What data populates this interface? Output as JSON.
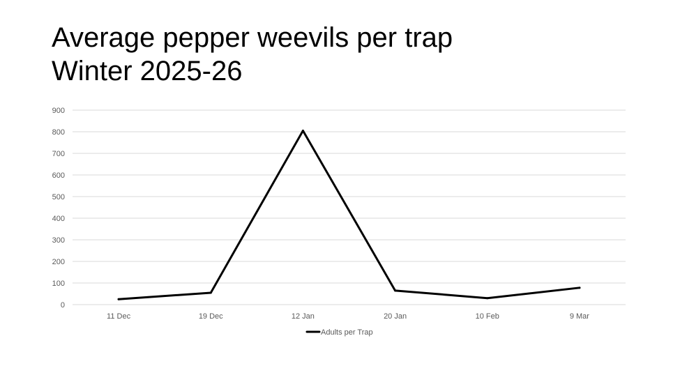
{
  "chart_data": {
    "type": "line",
    "title": "Average pepper weevils per trap",
    "subtitle": "Winter 2025-26",
    "categories": [
      "11 Dec",
      "19 Dec",
      "12 Jan",
      "20 Jan",
      "10 Feb",
      "9 Mar"
    ],
    "series": [
      {
        "name": "Adults per Trap",
        "values": [
          25,
          55,
          805,
          65,
          30,
          78
        ],
        "color": "#000000"
      }
    ],
    "ylim": [
      0,
      900
    ],
    "yticks": [
      0,
      100,
      200,
      300,
      400,
      500,
      600,
      700,
      800,
      900
    ],
    "grid": true,
    "legend": "bottom",
    "xlabel": "",
    "ylabel": ""
  }
}
